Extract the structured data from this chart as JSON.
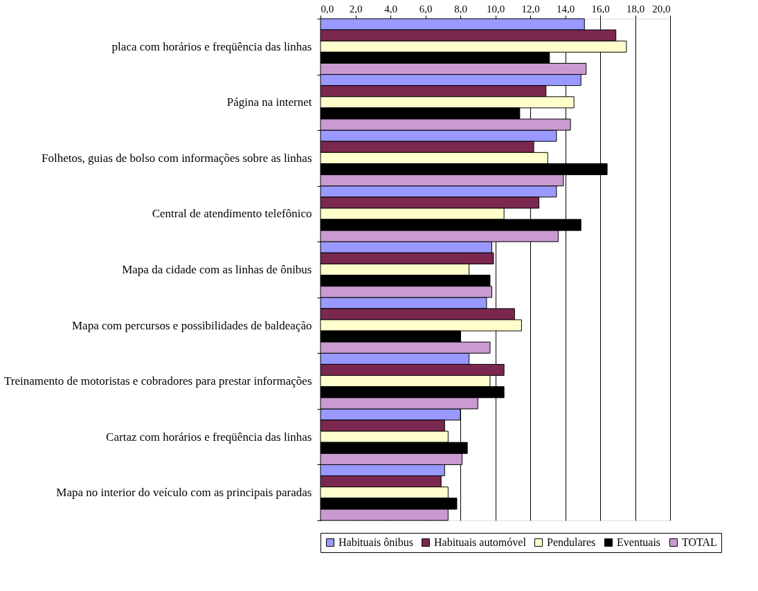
{
  "chart_data": {
    "type": "bar",
    "orientation": "horizontal",
    "categories": [
      "placa com horários e freqüência das linhas",
      "Página na internet",
      "Folhetos, guias de bolso com informações sobre as linhas",
      "Central de atendimento telefônico",
      "Mapa da cidade com as linhas de ônibus",
      "Mapa com percursos e possibilidades de baldeação",
      "Treinamento de motoristas e cobradores para prestar informações",
      "Cartaz com horários e freqüência das linhas",
      "Mapa no interior do veículo com as principais paradas"
    ],
    "series": [
      {
        "name": "Habituais ônibus",
        "color": "#9999ff",
        "values": [
          15.1,
          14.9,
          13.5,
          13.5,
          9.8,
          9.5,
          8.5,
          8.0,
          7.1
        ]
      },
      {
        "name": "Habituais automóvel",
        "color": "#7a2850",
        "values": [
          16.9,
          12.9,
          12.2,
          12.5,
          9.9,
          11.1,
          10.5,
          7.1,
          6.9
        ]
      },
      {
        "name": "Pendulares",
        "color": "#ffffcc",
        "values": [
          17.5,
          14.5,
          13.0,
          10.5,
          8.5,
          11.5,
          9.7,
          7.3,
          7.3
        ]
      },
      {
        "name": "Eventuais",
        "color": "#000000",
        "values": [
          13.1,
          11.4,
          16.4,
          14.9,
          9.7,
          8.0,
          10.5,
          8.4,
          7.8
        ]
      },
      {
        "name": "TOTAL",
        "color": "#c89ad0",
        "values": [
          15.2,
          14.3,
          13.9,
          13.6,
          9.8,
          9.7,
          9.0,
          8.1,
          7.3
        ]
      }
    ],
    "xlim": [
      0,
      20
    ],
    "xticks": [
      {
        "value": 0,
        "label": "0,0"
      },
      {
        "value": 2,
        "label": "2,0"
      },
      {
        "value": 4,
        "label": "4,0"
      },
      {
        "value": 6,
        "label": "6,0"
      },
      {
        "value": 8,
        "label": "8,0"
      },
      {
        "value": 10,
        "label": "10,0"
      },
      {
        "value": 12,
        "label": "12,0"
      },
      {
        "value": 14,
        "label": "14,0"
      },
      {
        "value": 16,
        "label": "16,0"
      },
      {
        "value": 18,
        "label": "18,0"
      },
      {
        "value": 20,
        "label": "20,0"
      }
    ],
    "grid": "x",
    "legend": "bottom"
  }
}
